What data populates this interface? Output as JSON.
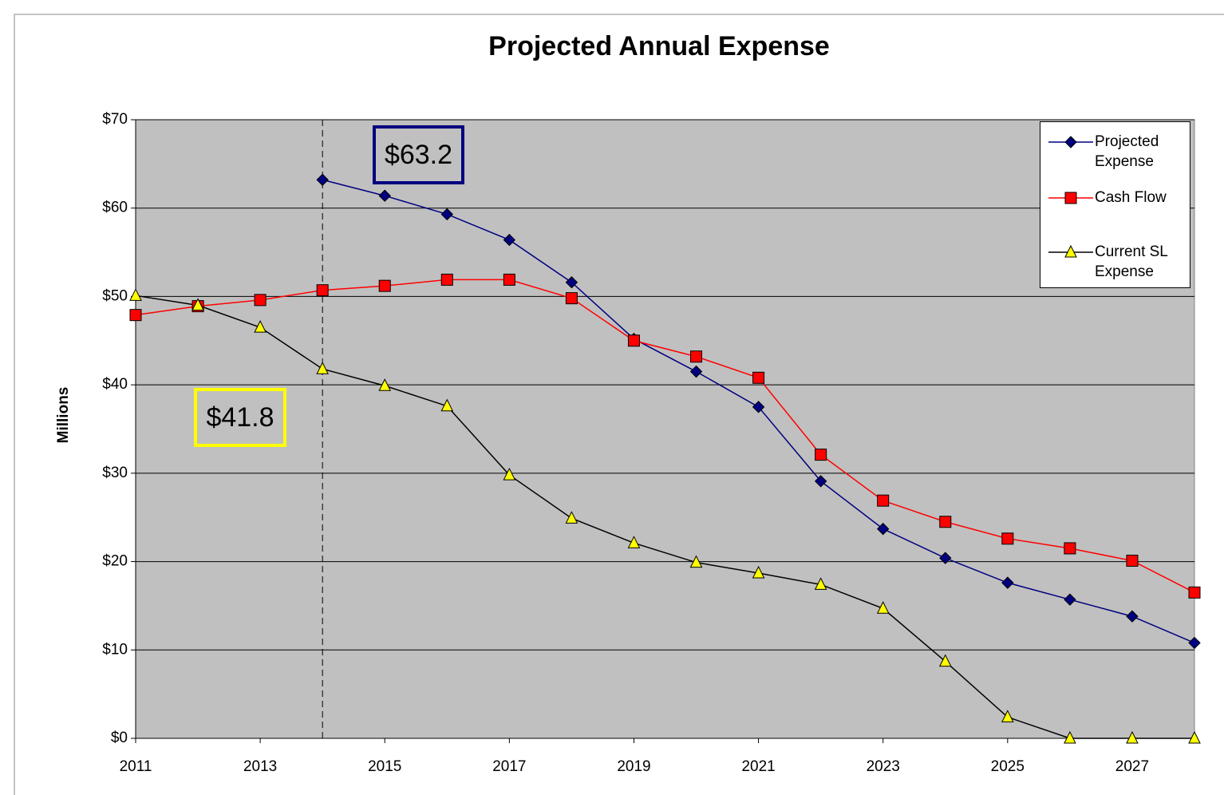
{
  "chart_data": {
    "type": "line",
    "title": "Projected Annual Expense",
    "y_label": "Millions",
    "x": [
      2011,
      2012,
      2013,
      2014,
      2015,
      2016,
      2017,
      2018,
      2019,
      2020,
      2021,
      2022,
      2023,
      2024,
      2025,
      2026,
      2027,
      2028
    ],
    "xlim": [
      2011,
      2028
    ],
    "xticks": [
      2011,
      2013,
      2015,
      2017,
      2019,
      2021,
      2023,
      2025,
      2027
    ],
    "ylim": [
      0,
      70
    ],
    "yticks": [
      {
        "value": 0,
        "label": "$0"
      },
      {
        "value": 10,
        "label": "$10"
      },
      {
        "value": 20,
        "label": "$20"
      },
      {
        "value": 30,
        "label": "$30"
      },
      {
        "value": 40,
        "label": "$40"
      },
      {
        "value": 50,
        "label": "$50"
      },
      {
        "value": 60,
        "label": "$60"
      },
      {
        "value": 70,
        "label": "$70"
      }
    ],
    "grid": true,
    "legend": "top-right",
    "series": [
      {
        "name": "Projected Expense",
        "color": "#000080",
        "marker": "diamond",
        "values": [
          null,
          null,
          null,
          63.2,
          61.4,
          59.3,
          56.4,
          51.6,
          45.2,
          41.5,
          37.5,
          29.1,
          23.7,
          20.4,
          17.6,
          15.7,
          13.8,
          10.8
        ]
      },
      {
        "name": "Cash Flow",
        "color": "#ff0000",
        "marker": "square",
        "values": [
          47.9,
          48.9,
          49.6,
          50.7,
          51.2,
          51.9,
          51.9,
          49.8,
          45.0,
          43.2,
          40.8,
          32.1,
          26.9,
          24.5,
          22.6,
          21.5,
          20.1,
          16.5
        ]
      },
      {
        "name": "Current SL Expense",
        "color": "#000000",
        "marker": "triangle",
        "values": [
          50.1,
          49.0,
          46.5,
          41.8,
          39.9,
          37.6,
          29.8,
          24.9,
          22.1,
          19.9,
          18.7,
          17.4,
          14.7,
          8.7,
          2.4,
          0,
          0,
          0
        ]
      }
    ],
    "vline": 2014,
    "annotations": [
      {
        "text": "$63.2",
        "color": "#000080"
      },
      {
        "text": "$41.8",
        "color": "#ffff00"
      }
    ]
  }
}
